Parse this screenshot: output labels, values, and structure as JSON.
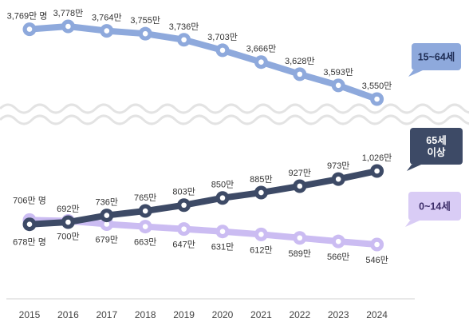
{
  "chart_data": {
    "type": "line",
    "x": [
      "2015",
      "2016",
      "2017",
      "2018",
      "2019",
      "2020",
      "2021",
      "2022",
      "2023",
      "2024"
    ],
    "series": [
      {
        "name": "15~64세",
        "values": [
          3769,
          3778,
          3764,
          3755,
          3736,
          3703,
          3666,
          3628,
          3593,
          3550
        ],
        "labels": [
          "3,769만 명",
          "3,778만",
          "3,764만",
          "3,755만",
          "3,736만",
          "3,703만",
          "3,666만",
          "3,628만",
          "3,593만",
          "3,550만"
        ],
        "color": "#8ea9dc"
      },
      {
        "name": "65세 이상",
        "values": [
          678,
          692,
          736,
          765,
          803,
          850,
          885,
          927,
          973,
          1026
        ],
        "labels": [
          "678만 명",
          "692만",
          "736만",
          "765만",
          "803만",
          "850만",
          "885만",
          "927만",
          "973만",
          "1,026만"
        ],
        "color": "#3d4a66"
      },
      {
        "name": "0~14세",
        "values": [
          706,
          700,
          679,
          663,
          647,
          631,
          612,
          589,
          566,
          546
        ],
        "labels": [
          "706만 명",
          "700만",
          "679만",
          "663만",
          "647만",
          "631만",
          "612만",
          "589만",
          "566만",
          "546만"
        ],
        "color": "#cbbcf2"
      }
    ],
    "legend": [
      {
        "text": "15~64세",
        "bg": "#8ea9dc",
        "fg": "#1f2d55"
      },
      {
        "text": "65세 이상",
        "bg": "#3d4a66",
        "fg": "#ffffff"
      },
      {
        "text": "0~14세",
        "bg": "#d9ccf5",
        "fg": "#3d2e6a"
      }
    ],
    "axis_break": true,
    "grid": false
  }
}
